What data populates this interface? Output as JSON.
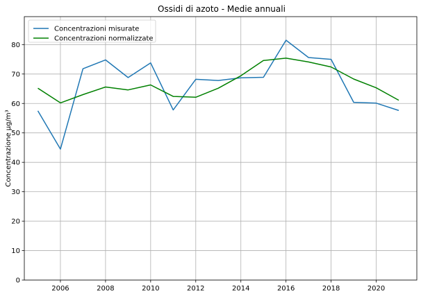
{
  "chart_data": {
    "type": "line",
    "title": "Ossidi di azoto - Medie annuali",
    "xlabel": "",
    "ylabel": "Concentrazione µg/m³",
    "xlim": [
      2004.4,
      2021.8
    ],
    "ylim": [
      0,
      89.5
    ],
    "xticks": [
      2006,
      2008,
      2010,
      2012,
      2014,
      2016,
      2018,
      2020
    ],
    "yticks": [
      0,
      10,
      20,
      30,
      40,
      50,
      60,
      70,
      80
    ],
    "grid": true,
    "legend_position": "top-left",
    "x": [
      2005,
      2006,
      2007,
      2008,
      2009,
      2010,
      2011,
      2012,
      2013,
      2014,
      2015,
      2016,
      2017,
      2018,
      2019,
      2020,
      2021
    ],
    "series": [
      {
        "name": "Concentrazioni misurate",
        "color": "#1f77b4",
        "values": [
          57.5,
          44.5,
          71.8,
          74.8,
          68.8,
          73.8,
          57.8,
          68.2,
          67.8,
          68.7,
          68.9,
          81.5,
          75.6,
          75.0,
          60.4,
          60.1,
          57.6
        ]
      },
      {
        "name": "Concentrazioni normalizzate",
        "color": "#008000",
        "values": [
          65.2,
          60.2,
          63.0,
          65.6,
          64.6,
          66.3,
          62.4,
          62.1,
          65.2,
          69.4,
          74.6,
          75.4,
          74.1,
          72.4,
          68.3,
          65.3,
          61.1
        ]
      }
    ]
  }
}
